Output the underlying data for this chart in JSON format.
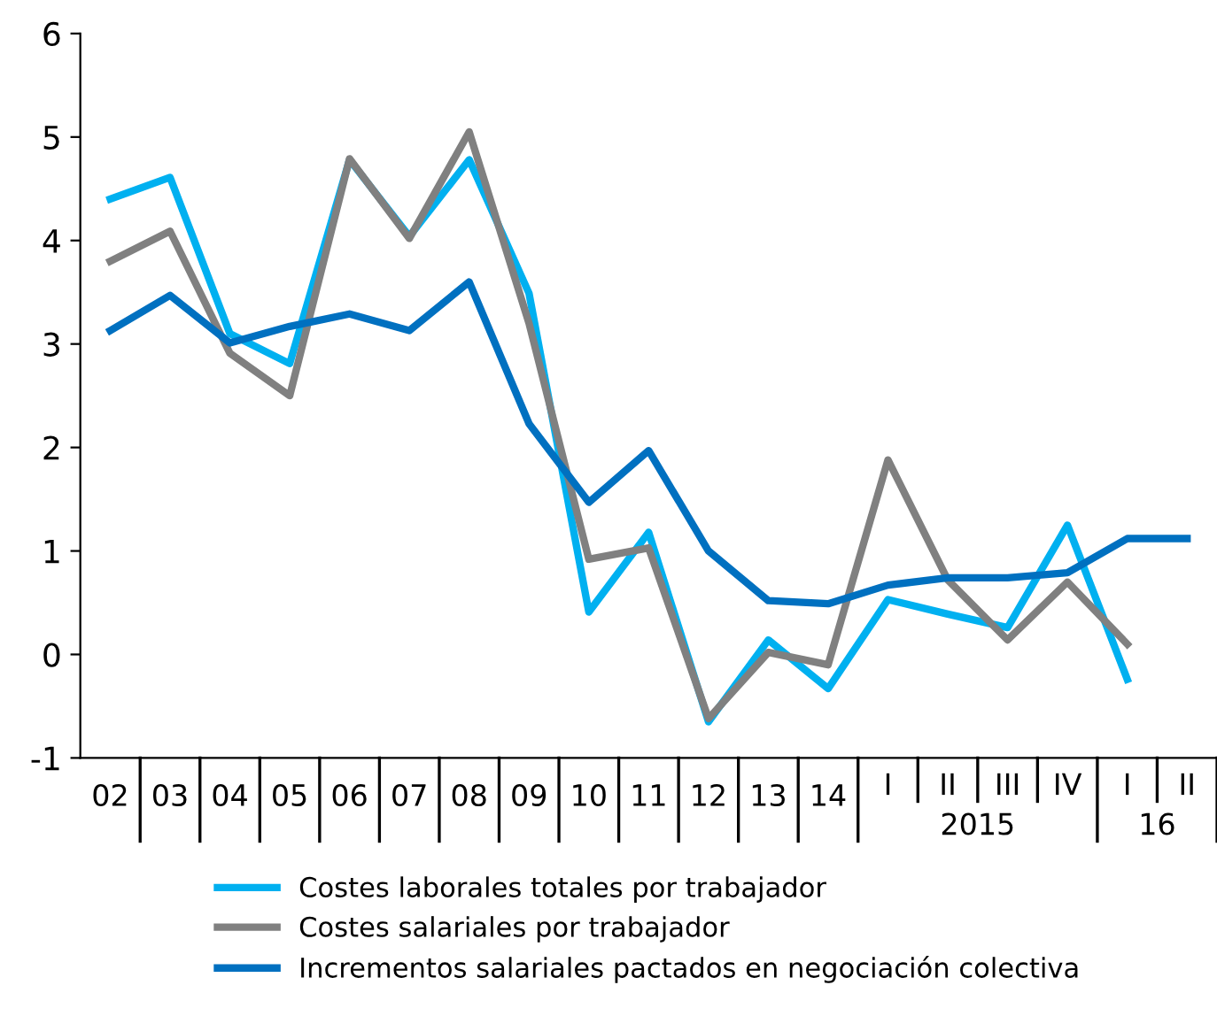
{
  "chart_data": {
    "type": "line",
    "categories": [
      "02",
      "03",
      "04",
      "05",
      "06",
      "07",
      "08",
      "09",
      "10",
      "11",
      "12",
      "13",
      "14",
      "I",
      "II",
      "III",
      "IV",
      "I",
      "II"
    ],
    "series": [
      {
        "name": "Costes laborales totales por trabajador",
        "color": "#00b0f0",
        "values": [
          4.4,
          4.61,
          3.1,
          2.81,
          4.78,
          4.04,
          4.78,
          3.49,
          0.41,
          1.18,
          -0.65,
          0.14,
          -0.33,
          0.53,
          0.39,
          0.26,
          1.25,
          -0.24,
          null
        ]
      },
      {
        "name": "Costes salariales por trabajador",
        "color": "#808080",
        "values": [
          3.8,
          4.09,
          2.91,
          2.5,
          4.79,
          4.02,
          5.05,
          3.2,
          0.92,
          1.03,
          -0.62,
          0.02,
          -0.1,
          1.88,
          0.72,
          0.14,
          0.7,
          0.1,
          null
        ]
      },
      {
        "name": "Incrementos salariales pactados en negociación colectiva",
        "color": "#0070c0",
        "values": [
          3.13,
          3.47,
          3.01,
          3.17,
          3.29,
          3.13,
          3.6,
          2.23,
          1.47,
          1.97,
          1.0,
          0.52,
          0.49,
          0.67,
          0.74,
          0.74,
          0.79,
          1.12,
          1.12
        ]
      }
    ],
    "annotations": [
      "2015",
      "16"
    ],
    "ylim": [
      -1,
      6
    ],
    "yticks": [
      -1,
      0,
      1,
      2,
      3,
      4,
      5,
      6
    ],
    "grid": false,
    "legend": "bottom",
    "marker": "none",
    "line_style": "solid"
  }
}
